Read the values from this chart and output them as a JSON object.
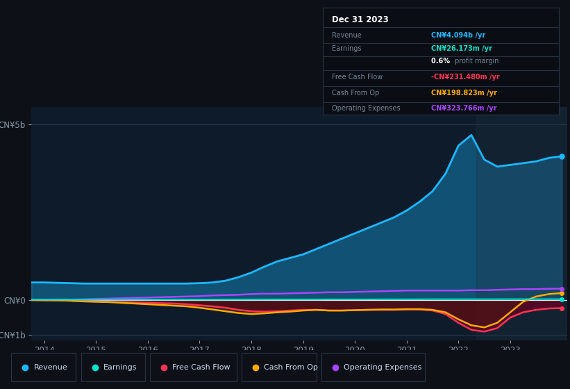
{
  "background_color": "#0d1117",
  "plot_bg_color": "#0d1b2a",
  "title_box": {
    "date": "Dec 31 2023",
    "rows": [
      {
        "label": "Revenue",
        "value": "CN¥4.094b",
        "unit": "/yr",
        "color": "#1ab8ff"
      },
      {
        "label": "Earnings",
        "value": "CN¥26.173m",
        "unit": "/yr",
        "color": "#00e5cc"
      },
      {
        "label": "",
        "value": "0.6%",
        "unit": "profit margin",
        "color": "#ffffff"
      },
      {
        "label": "Free Cash Flow",
        "value": "-CN¥231.480m",
        "unit": "/yr",
        "color": "#ff3355"
      },
      {
        "label": "Cash From Op",
        "value": "CN¥198.823m",
        "unit": "/yr",
        "color": "#ffaa00"
      },
      {
        "label": "Operating Expenses",
        "value": "CN¥323.766m",
        "unit": "/yr",
        "color": "#aa44ff"
      }
    ]
  },
  "years": [
    2013.75,
    2014.0,
    2014.25,
    2014.5,
    2014.75,
    2015.0,
    2015.25,
    2015.5,
    2015.75,
    2016.0,
    2016.25,
    2016.5,
    2016.75,
    2017.0,
    2017.25,
    2017.5,
    2017.75,
    2018.0,
    2018.25,
    2018.5,
    2018.75,
    2019.0,
    2019.25,
    2019.5,
    2019.75,
    2020.0,
    2020.25,
    2020.5,
    2020.75,
    2021.0,
    2021.25,
    2021.5,
    2021.75,
    2022.0,
    2022.25,
    2022.5,
    2022.75,
    2023.0,
    2023.25,
    2023.5,
    2023.75,
    2024.0
  ],
  "revenue": [
    0.5,
    0.5,
    0.49,
    0.48,
    0.47,
    0.47,
    0.47,
    0.47,
    0.47,
    0.47,
    0.47,
    0.47,
    0.47,
    0.48,
    0.5,
    0.55,
    0.65,
    0.78,
    0.95,
    1.1,
    1.2,
    1.3,
    1.45,
    1.6,
    1.75,
    1.9,
    2.05,
    2.2,
    2.35,
    2.55,
    2.8,
    3.1,
    3.6,
    4.4,
    4.7,
    4.0,
    3.8,
    3.85,
    3.9,
    3.95,
    4.05,
    4.094
  ],
  "earnings": [
    0.01,
    0.01,
    0.01,
    0.01,
    0.01,
    0.01,
    0.01,
    0.01,
    0.012,
    0.012,
    0.012,
    0.012,
    0.012,
    0.012,
    0.013,
    0.013,
    0.013,
    0.014,
    0.014,
    0.015,
    0.015,
    0.015,
    0.015,
    0.018,
    0.018,
    0.018,
    0.018,
    0.02,
    0.02,
    0.022,
    0.022,
    0.024,
    0.025,
    0.025,
    0.025,
    0.025,
    0.025,
    0.026,
    0.026,
    0.026,
    0.026,
    0.026
  ],
  "free_cash_flow": [
    0.0,
    -0.005,
    -0.01,
    -0.02,
    -0.03,
    -0.04,
    -0.05,
    -0.06,
    -0.07,
    -0.08,
    -0.09,
    -0.1,
    -0.12,
    -0.15,
    -0.18,
    -0.22,
    -0.28,
    -0.32,
    -0.33,
    -0.32,
    -0.3,
    -0.28,
    -0.28,
    -0.3,
    -0.3,
    -0.29,
    -0.28,
    -0.28,
    -0.28,
    -0.27,
    -0.27,
    -0.3,
    -0.4,
    -0.65,
    -0.85,
    -0.9,
    -0.8,
    -0.5,
    -0.35,
    -0.28,
    -0.24,
    -0.231
  ],
  "cash_from_op": [
    0.0,
    -0.005,
    -0.01,
    -0.02,
    -0.04,
    -0.05,
    -0.06,
    -0.08,
    -0.1,
    -0.12,
    -0.14,
    -0.16,
    -0.18,
    -0.22,
    -0.27,
    -0.32,
    -0.37,
    -0.4,
    -0.38,
    -0.35,
    -0.33,
    -0.3,
    -0.28,
    -0.3,
    -0.3,
    -0.29,
    -0.28,
    -0.27,
    -0.27,
    -0.26,
    -0.26,
    -0.28,
    -0.35,
    -0.55,
    -0.72,
    -0.78,
    -0.65,
    -0.35,
    -0.05,
    0.1,
    0.17,
    0.199
  ],
  "operating_expenses": [
    0.0,
    0.0,
    0.01,
    0.01,
    0.02,
    0.03,
    0.04,
    0.05,
    0.06,
    0.07,
    0.08,
    0.09,
    0.1,
    0.11,
    0.13,
    0.14,
    0.15,
    0.17,
    0.18,
    0.18,
    0.19,
    0.2,
    0.21,
    0.22,
    0.22,
    0.23,
    0.24,
    0.25,
    0.26,
    0.27,
    0.27,
    0.27,
    0.27,
    0.27,
    0.28,
    0.28,
    0.29,
    0.3,
    0.31,
    0.31,
    0.32,
    0.324
  ],
  "ylim": [
    -1.15,
    5.5
  ],
  "yticks": [
    -1.0,
    0.0,
    5.0
  ],
  "ytick_labels": [
    "-CN¥1b",
    "CN¥0",
    "CN¥5b"
  ],
  "xticks": [
    2014,
    2015,
    2016,
    2017,
    2018,
    2019,
    2020,
    2021,
    2022,
    2023
  ],
  "xlim": [
    2013.75,
    2024.1
  ],
  "colors": {
    "revenue": "#1ab8ff",
    "earnings": "#00e5cc",
    "free_cash_flow": "#ff3355",
    "cash_from_op": "#ffaa00",
    "operating_expenses": "#aa44ff"
  },
  "legend": [
    {
      "label": "Revenue",
      "color": "#1ab8ff"
    },
    {
      "label": "Earnings",
      "color": "#00e5cc"
    },
    {
      "label": "Free Cash Flow",
      "color": "#ff3355"
    },
    {
      "label": "Cash From Op",
      "color": "#ffaa00"
    },
    {
      "label": "Operating Expenses",
      "color": "#aa44ff"
    }
  ]
}
